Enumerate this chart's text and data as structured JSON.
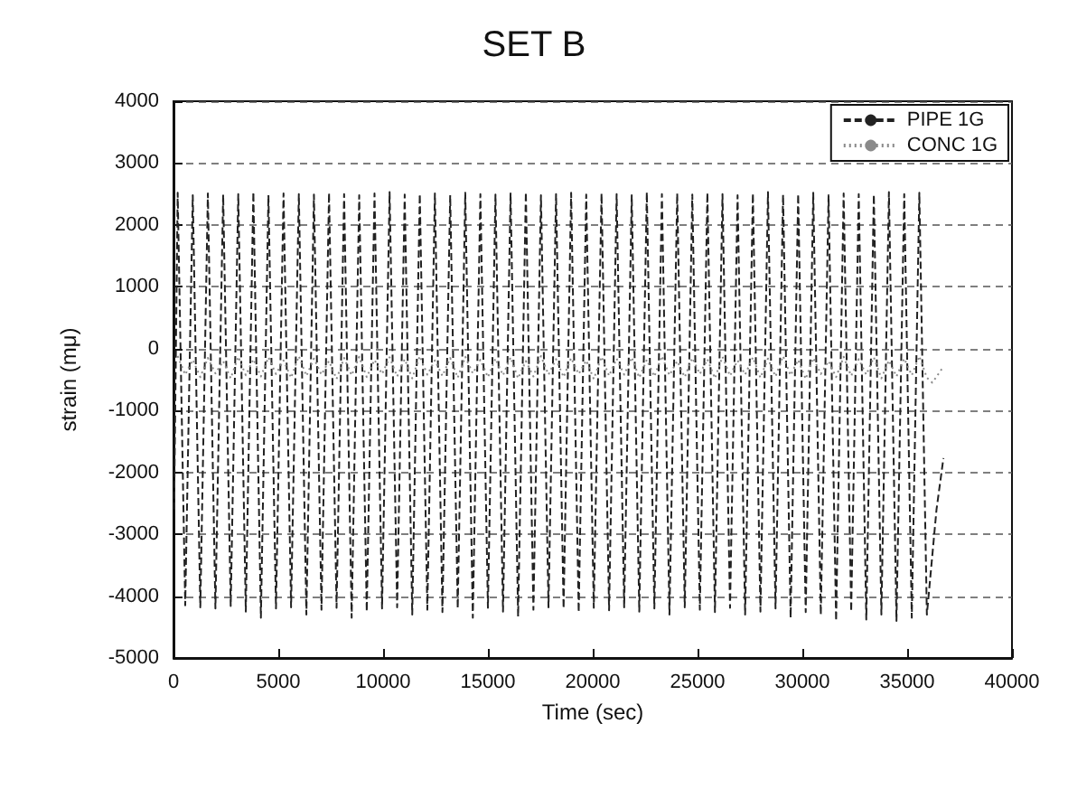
{
  "chart_data": {
    "type": "line",
    "title": "SET B",
    "xlabel": "Time (sec)",
    "ylabel": "strain (mμ)",
    "xlim": [
      0,
      40000
    ],
    "xticks": [
      0,
      5000,
      10000,
      15000,
      20000,
      25000,
      30000,
      35000,
      40000
    ],
    "ylim": [
      -5000,
      4000
    ],
    "yticks": [
      -5000,
      -4000,
      -3000,
      -2000,
      -1000,
      0,
      1000,
      2000,
      3000,
      4000
    ],
    "grid": "y",
    "legend": "top right",
    "series": [
      {
        "name": "PIPE 1G",
        "color": "#222222",
        "line_style": "dashed",
        "x": [
          30,
          200,
          560,
          920,
          1280,
          1640,
          2000,
          2370,
          2730,
          3090,
          3450,
          3810,
          4170,
          4530,
          4890,
          5250,
          5610,
          5980,
          6340,
          6700,
          7060,
          7420,
          7780,
          8140,
          8500,
          8860,
          9220,
          9590,
          9950,
          10310,
          10670,
          11030,
          11390,
          11750,
          12110,
          12470,
          12830,
          13200,
          13560,
          13920,
          14280,
          14640,
          15000,
          15360,
          15720,
          16080,
          16440,
          16810,
          17170,
          17530,
          17890,
          18250,
          18610,
          18970,
          19330,
          19690,
          20050,
          20420,
          20780,
          21140,
          21500,
          21860,
          22220,
          22580,
          22940,
          23300,
          23660,
          24030,
          24390,
          24750,
          25110,
          25470,
          25830,
          26190,
          26550,
          26910,
          27270,
          27640,
          28000,
          28360,
          28720,
          29080,
          29440,
          29800,
          30160,
          30520,
          30880,
          31250,
          31610,
          31970,
          32330,
          32690,
          33050,
          33410,
          33770,
          34130,
          34490,
          34860,
          35220,
          35580,
          35940,
          36400,
          36730
        ],
        "values": [
          -2600,
          2520,
          -4150,
          2480,
          -4180,
          2510,
          -4200,
          2490,
          -4160,
          2500,
          -4250,
          2530,
          -4350,
          2480,
          -4200,
          2510,
          -4180,
          2500,
          -4300,
          2490,
          -4220,
          2520,
          -4190,
          2500,
          -4350,
          2480,
          -4250,
          2510,
          -4200,
          2530,
          -4180,
          2490,
          -4300,
          2500,
          -4220,
          2510,
          -4260,
          2480,
          -4200,
          2520,
          -4350,
          2500,
          -4190,
          2490,
          -4250,
          2510,
          -4330,
          2530,
          -4220,
          2480,
          -4180,
          2500,
          -4200,
          2520,
          -4260,
          2490,
          -4190,
          2510,
          -4230,
          2500,
          -4180,
          2480,
          -4250,
          2530,
          -4200,
          2500,
          -4300,
          2510,
          -4180,
          2490,
          -4220,
          2520,
          -4260,
          2500,
          -4190,
          2480,
          -4300,
          2510,
          -4250,
          2530,
          -4200,
          2490,
          -4350,
          2500,
          -4260,
          2520,
          -4300,
          2480,
          -4400,
          2510,
          -4250,
          2500,
          -4380,
          2490,
          -4300,
          2530,
          -4400,
          2500,
          -4350,
          2520,
          -4300,
          -2600,
          -1770
        ]
      },
      {
        "name": "CONC 1G",
        "color": "#8a8a8a",
        "line_style": "dotted",
        "x": [
          200,
          560,
          920,
          1280,
          1640,
          2000,
          2370,
          2730,
          3090,
          3450,
          3810,
          4170,
          4530,
          4890,
          5250,
          5610,
          5980,
          6340,
          6700,
          7060,
          7420,
          7780,
          8140,
          8500,
          8860,
          9220,
          9590,
          9950,
          10310,
          10670,
          11030,
          11390,
          11750,
          12110,
          12470,
          12830,
          13200,
          13560,
          13920,
          14280,
          14640,
          15000,
          15360,
          15720,
          16080,
          16440,
          16810,
          17170,
          17530,
          17890,
          18250,
          18610,
          18970,
          19330,
          19690,
          20050,
          20420,
          20780,
          21140,
          21500,
          21860,
          22220,
          22580,
          22940,
          23300,
          23660,
          24030,
          24390,
          24750,
          25110,
          25470,
          25830,
          26190,
          26550,
          26910,
          27270,
          27640,
          28000,
          28360,
          28720,
          29080,
          29440,
          29800,
          30160,
          30520,
          30880,
          31250,
          31610,
          31970,
          32330,
          32690,
          33050,
          33410,
          33770,
          34130,
          34490,
          34860,
          35220,
          35580,
          35940,
          36200,
          36650
        ],
        "values": [
          -120,
          -420,
          -180,
          -460,
          -150,
          -400,
          -200,
          -480,
          -130,
          -430,
          -170,
          -450,
          -140,
          -410,
          -190,
          -470,
          -120,
          -440,
          -160,
          -420,
          -200,
          -490,
          -150,
          -430,
          -130,
          -460,
          -180,
          -410,
          -140,
          -450,
          -170,
          -480,
          -120,
          -420,
          -190,
          -440,
          -150,
          -470,
          -130,
          -400,
          -180,
          -460,
          -160,
          -430,
          -140,
          -480,
          -200,
          -450,
          -120,
          -420,
          -170,
          -460,
          -150,
          -410,
          -190,
          -490,
          -130,
          -440,
          -160,
          -420,
          -140,
          -470,
          -180,
          -450,
          -120,
          -430,
          -200,
          -460,
          -150,
          -410,
          -170,
          -480,
          -130,
          -440,
          -190,
          -420,
          -140,
          -470,
          -160,
          -450,
          -120,
          -430,
          -180,
          -490,
          -150,
          -410,
          -200,
          -460,
          -130,
          -440,
          -170,
          -420,
          -140,
          -480,
          -190,
          -450,
          -160,
          -430,
          -120,
          -470,
          -550,
          -330
        ]
      }
    ]
  }
}
